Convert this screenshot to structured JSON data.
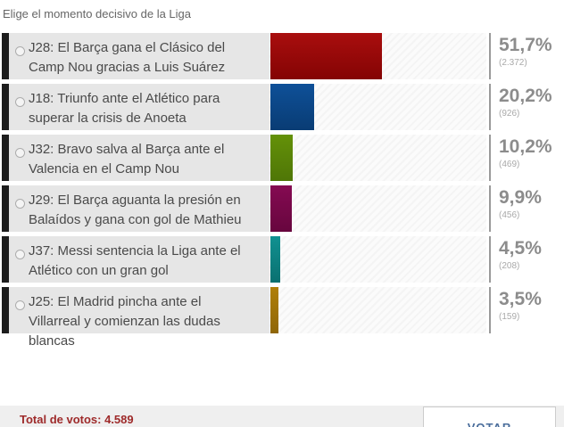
{
  "title": "Elige el momento decisivo de la Liga",
  "options": [
    {
      "label": "J28: El Barça gana el Clásico del Camp Nou gracias a Luis Suárez",
      "percent": "51,7%",
      "percent_value": 51.7,
      "votes": "(2.372)",
      "color_top": "#a90e0e",
      "color_bottom": "#840404"
    },
    {
      "label": "J18: Triunfo ante el Atlético para superar la crisis de Anoeta",
      "percent": "20,2%",
      "percent_value": 20.2,
      "votes": "(926)",
      "color_top": "#0e5098",
      "color_bottom": "#093c74"
    },
    {
      "label": "J32: Bravo salva al Barça ante el Valencia en el Camp Nou",
      "percent": "10,2%",
      "percent_value": 10.2,
      "votes": "(469)",
      "color_top": "#649108",
      "color_bottom": "#4f7607"
    },
    {
      "label": "J29: El Barça aguanta la presión en Balaídos y gana con gol de Mathieu",
      "percent": "9,9%",
      "percent_value": 9.9,
      "votes": "(456)",
      "color_top": "#850a52",
      "color_bottom": "#67063e"
    },
    {
      "label": "J37: Messi sentencia la Liga ante el Atlético con un gran gol",
      "percent": "4,5%",
      "percent_value": 4.5,
      "votes": "(208)",
      "color_top": "#109191",
      "color_bottom": "#0a7070"
    },
    {
      "label": "J25: El Madrid pincha ante el Villarreal y comienzan las dudas blancas",
      "percent": "3,5%",
      "percent_value": 3.5,
      "votes": "(159)",
      "color_top": "#b08009",
      "color_bottom": "#8f6607"
    }
  ],
  "chart_data": {
    "type": "bar",
    "title": "Elige el momento decisivo de la Liga",
    "categories": [
      "J28: El Barça gana el Clásico del Camp Nou gracias a Luis Suárez",
      "J18: Triunfo ante el Atlético para superar la crisis de Anoeta",
      "J32: Bravo salva al Barça ante el Valencia en el Camp Nou",
      "J29: El Barça aguanta la presión en Balaídos y gana con gol de Mathieu",
      "J37: Messi sentencia la Liga ante el Atlético con un gran gol",
      "J25: El Madrid pincha ante el Villarreal y comienzan las dudas blancas"
    ],
    "values": [
      51.7,
      20.2,
      10.2,
      9.9,
      4.5,
      3.5
    ],
    "vote_counts": [
      2372,
      926,
      469,
      456,
      208,
      159
    ],
    "value_unit": "%",
    "xlim": [
      0,
      100
    ],
    "total_votes": 4589,
    "bar_colors": [
      "#9b0808",
      "#0c4a8c",
      "#5d880a",
      "#7a0849",
      "#0d8989",
      "#a57808"
    ]
  },
  "footer": {
    "total_label": "Total de votos: 4.589",
    "vote_button": "VOTAR"
  }
}
